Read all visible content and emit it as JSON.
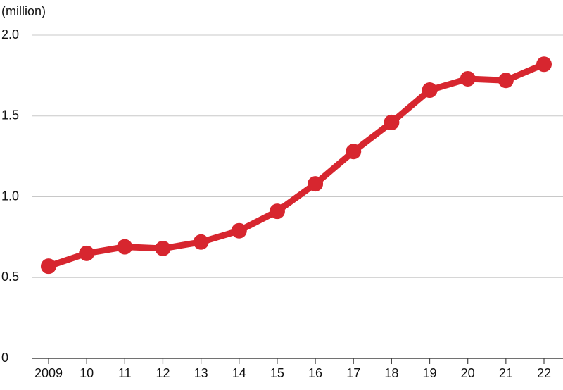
{
  "chart_data": {
    "type": "line",
    "unit_label": "(million)",
    "categories": [
      "2009",
      "10",
      "11",
      "12",
      "13",
      "14",
      "15",
      "16",
      "17",
      "18",
      "19",
      "20",
      "21",
      "22"
    ],
    "values": [
      0.57,
      0.65,
      0.69,
      0.68,
      0.72,
      0.79,
      0.91,
      1.08,
      1.28,
      1.46,
      1.66,
      1.73,
      1.72,
      1.82
    ],
    "color": "#d7262f",
    "ylim": [
      0,
      2.0
    ],
    "yticks": [
      0,
      0.5,
      {
        "value": 1.0,
        "label": "1.0"
      },
      1.5,
      {
        "value": 2.0,
        "label": "2.0"
      }
    ],
    "grid": true
  }
}
